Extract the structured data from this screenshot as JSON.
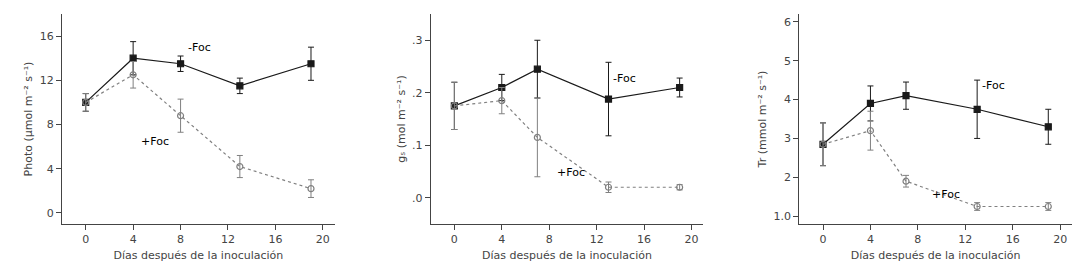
{
  "chart_data": [
    {
      "type": "line",
      "xlabel": "Días después de la inoculación",
      "ylabel": "Photo (μmol m⁻² s⁻¹)",
      "xlim": [
        -2,
        21
      ],
      "xticks": [
        0,
        4,
        8,
        12,
        16,
        20
      ],
      "ylim": [
        -1,
        18
      ],
      "yticks": [
        0,
        4,
        8,
        12,
        16
      ],
      "grid": false,
      "series": [
        {
          "x": [
            0,
            4,
            8,
            13,
            19
          ],
          "values": [
            10.0,
            14.0,
            13.5,
            11.5,
            13.5
          ],
          "yerr": [
            0.8,
            1.5,
            0.7,
            0.7,
            1.5
          ],
          "color": "#1a1a1a",
          "marker": "square",
          "line_style": "solid"
        },
        {
          "x": [
            0,
            4,
            8,
            13,
            19
          ],
          "values": [
            10.0,
            12.5,
            8.8,
            4.2,
            2.2
          ],
          "yerr": [
            0.8,
            1.2,
            1.5,
            1.0,
            0.8
          ],
          "color": "#808080",
          "marker": "circle-open",
          "line_style": "dotted"
        }
      ],
      "annotations": [
        {
          "text": "-Foc",
          "x": 8.5,
          "y": 15.0
        },
        {
          "text": "+Foc",
          "x": 4.5,
          "y": 6.5
        }
      ]
    },
    {
      "type": "line",
      "xlabel": "Días después de la inoculación",
      "ylabel": "gₛ (mol m⁻² s⁻¹)",
      "xlim": [
        -2,
        21
      ],
      "xticks": [
        0,
        4,
        8,
        12,
        16,
        20
      ],
      "ylim": [
        -0.05,
        0.35
      ],
      "yticks": [
        {
          "value": 0.0,
          "label": ".0"
        },
        {
          "value": 0.1,
          "label": ".1"
        },
        {
          "value": 0.2,
          "label": ".2"
        },
        {
          "value": 0.3,
          "label": ".3"
        }
      ],
      "grid": false,
      "series": [
        {
          "x": [
            0,
            4,
            7,
            13,
            19
          ],
          "values": [
            0.175,
            0.21,
            0.245,
            0.188,
            0.21
          ],
          "yerr": [
            0.045,
            0.025,
            0.055,
            0.07,
            0.018
          ],
          "color": "#1a1a1a",
          "marker": "square",
          "line_style": "solid"
        },
        {
          "x": [
            0,
            4,
            7,
            13,
            19
          ],
          "values": [
            0.175,
            0.185,
            0.115,
            0.02,
            0.02
          ],
          "yerr": [
            0.045,
            0.025,
            0.075,
            0.01,
            0.005
          ],
          "color": "#808080",
          "marker": "circle-open",
          "line_style": "dotted"
        }
      ],
      "annotations": [
        {
          "text": "-Foc",
          "x": 13.2,
          "y": 0.228
        },
        {
          "text": "+Foc",
          "x": 8.5,
          "y": 0.048
        }
      ]
    },
    {
      "type": "line",
      "xlabel": "Días después de la inoculación",
      "ylabel": "Tr (mmol m⁻² s⁻¹)",
      "xlim": [
        -2,
        21
      ],
      "xticks": [
        0,
        4,
        8,
        12,
        16,
        20
      ],
      "ylim": [
        0.8,
        6.2
      ],
      "yticks": [
        {
          "value": 1.0,
          "label": "1.0"
        },
        2,
        3,
        4,
        5,
        6
      ],
      "grid": false,
      "series": [
        {
          "x": [
            0,
            4,
            7,
            13,
            19
          ],
          "values": [
            2.85,
            3.9,
            4.1,
            3.75,
            3.3
          ],
          "yerr": [
            0.55,
            0.45,
            0.35,
            0.75,
            0.45
          ],
          "color": "#1a1a1a",
          "marker": "square",
          "line_style": "solid"
        },
        {
          "x": [
            0,
            4,
            7,
            13,
            19
          ],
          "values": [
            2.85,
            3.2,
            1.9,
            1.25,
            1.25
          ],
          "yerr": [
            0.55,
            0.5,
            0.15,
            0.1,
            0.1
          ],
          "color": "#808080",
          "marker": "circle-open",
          "line_style": "dotted"
        }
      ],
      "annotations": [
        {
          "text": "-Foc",
          "x": 13.2,
          "y": 4.35
        },
        {
          "text": "+Foc",
          "x": 9.0,
          "y": 1.55
        }
      ]
    }
  ]
}
